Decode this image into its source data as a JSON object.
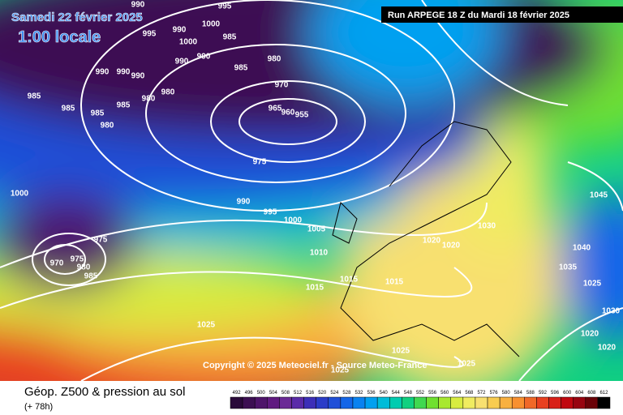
{
  "header": {
    "date": "Samedi 22 février 2025",
    "time": "1:00 locale",
    "run": "Run ARPEGE 18 Z du Mardi 18 février 2025"
  },
  "copyright": "Copyright © 2025 Meteociel.fr - Source Meteo-France",
  "footer": {
    "title": "Géop. Z500 & pression au sol",
    "lead": "(+ 78h)"
  },
  "legend": {
    "values": [
      492,
      496,
      500,
      504,
      508,
      512,
      516,
      520,
      524,
      528,
      532,
      536,
      540,
      544,
      548,
      552,
      556,
      560,
      564,
      568,
      572,
      576,
      580,
      584,
      588,
      592,
      596,
      600,
      604,
      608,
      612
    ],
    "colors": [
      "#2a0a3a",
      "#3c0f52",
      "#4e146a",
      "#601a80",
      "#6b2a96",
      "#5a2ba8",
      "#3c2fb8",
      "#2a3cc8",
      "#1f4fd8",
      "#1466e8",
      "#0a82f0",
      "#00a0f0",
      "#00bcd8",
      "#00ccb0",
      "#10d080",
      "#40d850",
      "#70e030",
      "#a8e830",
      "#d8ec40",
      "#f0ec60",
      "#f8e070",
      "#f8cc50",
      "#f8b040",
      "#f89030",
      "#f06828",
      "#e84020",
      "#d82018",
      "#c00810",
      "#980410",
      "#6a0208",
      "#000000"
    ]
  },
  "isobars": [
    995,
    990,
    1000,
    995,
    990,
    1000,
    985,
    980,
    990,
    990,
    985,
    990,
    990,
    990,
    985,
    985,
    985,
    985,
    980,
    980,
    980,
    970,
    965,
    960,
    955,
    975,
    1000,
    990,
    995,
    1000,
    1005,
    1010,
    975,
    975,
    980,
    985,
    970,
    1015,
    1015,
    1015,
    1020,
    1020,
    1025,
    1025,
    1025,
    1030,
    1045,
    1040,
    1035,
    1025,
    1030,
    1020,
    1020,
    1025
  ]
}
